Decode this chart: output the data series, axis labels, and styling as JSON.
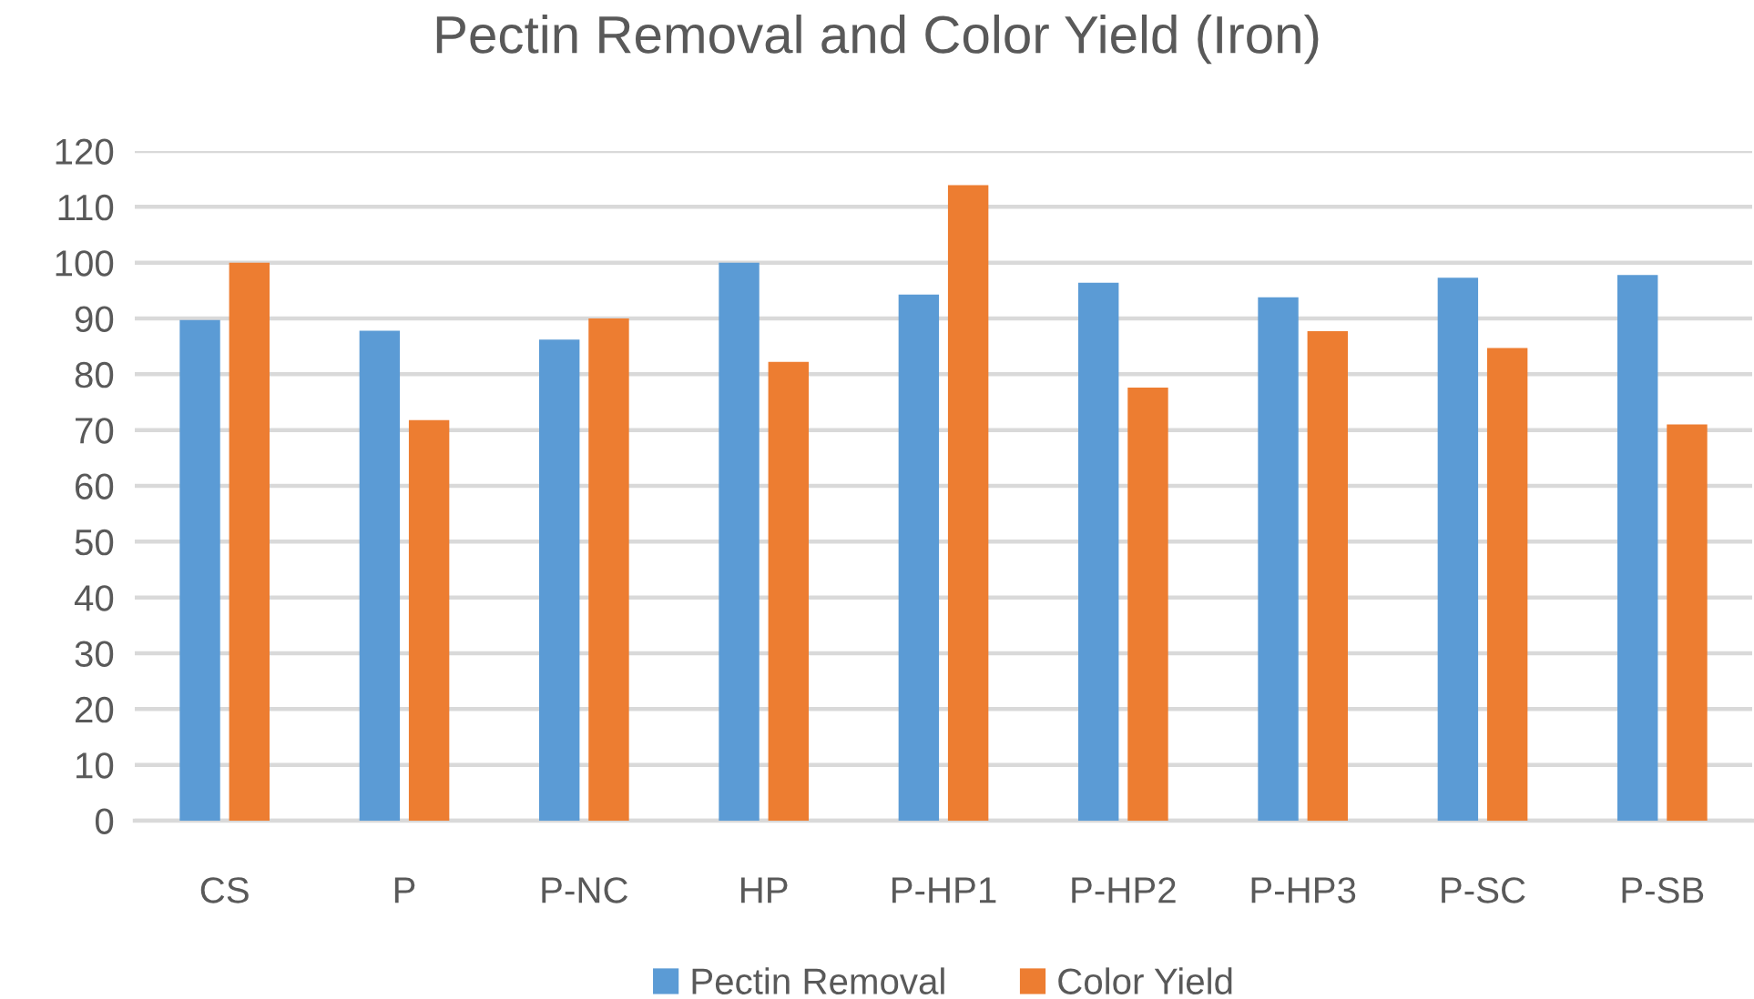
{
  "chart_data": {
    "type": "bar",
    "title": "Pectin Removal and Color Yield (Iron)",
    "categories": [
      "CS",
      "P",
      "P-NC",
      "HP",
      "P-HP1",
      "P-HP2",
      "P-HP3",
      "P-SC",
      "P-SB"
    ],
    "series": [
      {
        "name": "Pectin Removal",
        "color": "#5b9bd5",
        "values": [
          89.7,
          87.8,
          86.2,
          100,
          94.3,
          96.4,
          93.8,
          97.3,
          97.8
        ]
      },
      {
        "name": "Color Yield",
        "color": "#ed7d31",
        "values": [
          100,
          71.8,
          90,
          82.2,
          113.9,
          77.6,
          87.7,
          84.7,
          71
        ]
      }
    ],
    "ylim": [
      0,
      120
    ],
    "yticks": [
      0,
      10,
      20,
      30,
      40,
      50,
      60,
      70,
      80,
      90,
      100,
      110,
      120
    ],
    "grid": "y",
    "legend": "bottom"
  }
}
